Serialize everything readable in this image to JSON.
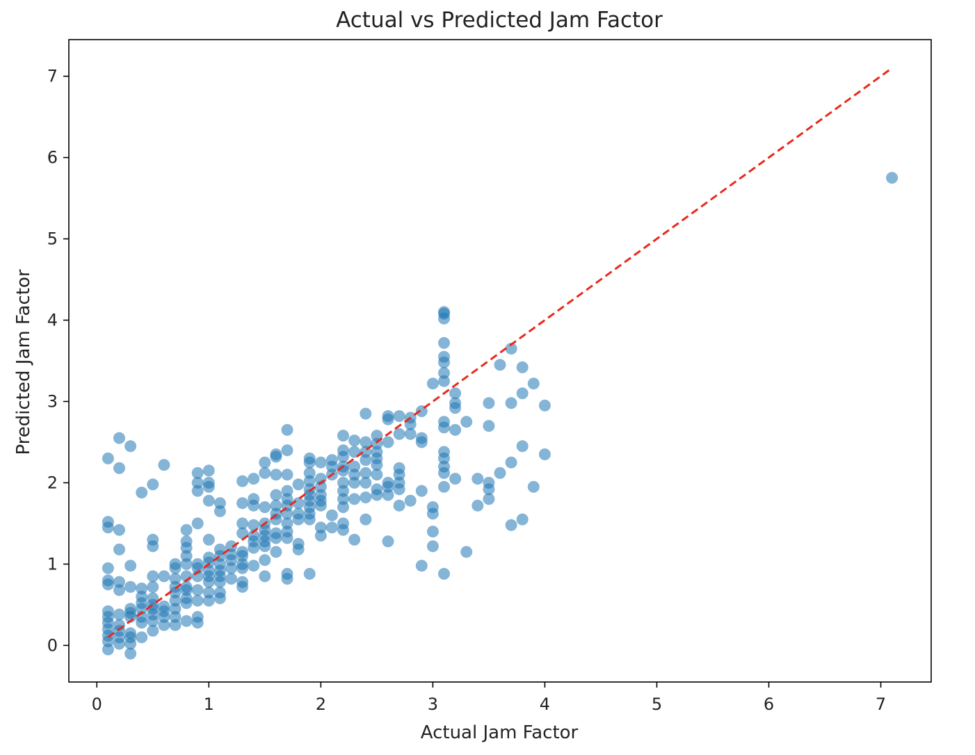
{
  "chart_data": {
    "type": "scatter",
    "title": "Actual vs Predicted Jam Factor",
    "xlabel": "Actual Jam Factor",
    "ylabel": "Predicted Jam Factor",
    "xlim": [
      -0.25,
      7.45
    ],
    "ylim": [
      -0.45,
      7.45
    ],
    "xticks": [
      0,
      1,
      2,
      3,
      4,
      5,
      6,
      7
    ],
    "yticks": [
      0,
      1,
      2,
      3,
      4,
      5,
      6,
      7
    ],
    "grid": false,
    "point_color": "#1f77b4",
    "point_alpha": 0.55,
    "reference_line": {
      "style": "dashed",
      "color": "#e8291c",
      "from": [
        0.1,
        0.1
      ],
      "to": [
        7.1,
        7.1
      ]
    },
    "points": [
      [
        0.1,
        -0.05
      ],
      [
        0.1,
        0.05
      ],
      [
        0.1,
        0.12
      ],
      [
        0.1,
        0.2
      ],
      [
        0.1,
        0.28
      ],
      [
        0.1,
        0.35
      ],
      [
        0.1,
        0.42
      ],
      [
        0.1,
        0.75
      ],
      [
        0.1,
        0.8
      ],
      [
        0.1,
        0.95
      ],
      [
        0.1,
        1.45
      ],
      [
        0.1,
        1.52
      ],
      [
        0.1,
        2.3
      ],
      [
        0.2,
        0.02
      ],
      [
        0.2,
        0.1
      ],
      [
        0.2,
        0.18
      ],
      [
        0.2,
        0.25
      ],
      [
        0.2,
        0.38
      ],
      [
        0.2,
        0.68
      ],
      [
        0.2,
        0.78
      ],
      [
        0.2,
        1.18
      ],
      [
        0.2,
        1.42
      ],
      [
        0.2,
        2.18
      ],
      [
        0.2,
        2.55
      ],
      [
        0.3,
        -0.1
      ],
      [
        0.3,
        0.02
      ],
      [
        0.3,
        0.1
      ],
      [
        0.3,
        0.15
      ],
      [
        0.3,
        0.35
      ],
      [
        0.3,
        0.4
      ],
      [
        0.3,
        0.45
      ],
      [
        0.3,
        0.72
      ],
      [
        0.3,
        0.98
      ],
      [
        0.3,
        2.45
      ],
      [
        0.4,
        0.1
      ],
      [
        0.4,
        0.28
      ],
      [
        0.4,
        0.35
      ],
      [
        0.4,
        0.45
      ],
      [
        0.4,
        0.52
      ],
      [
        0.4,
        0.6
      ],
      [
        0.4,
        0.7
      ],
      [
        0.4,
        1.88
      ],
      [
        0.5,
        0.18
      ],
      [
        0.5,
        0.3
      ],
      [
        0.5,
        0.38
      ],
      [
        0.5,
        0.45
      ],
      [
        0.5,
        0.5
      ],
      [
        0.5,
        0.58
      ],
      [
        0.5,
        0.72
      ],
      [
        0.5,
        0.85
      ],
      [
        0.5,
        1.22
      ],
      [
        0.5,
        1.3
      ],
      [
        0.5,
        1.98
      ],
      [
        0.6,
        0.25
      ],
      [
        0.6,
        0.35
      ],
      [
        0.6,
        0.42
      ],
      [
        0.6,
        0.48
      ],
      [
        0.6,
        0.85
      ],
      [
        0.6,
        2.22
      ],
      [
        0.7,
        0.25
      ],
      [
        0.7,
        0.35
      ],
      [
        0.7,
        0.45
      ],
      [
        0.7,
        0.55
      ],
      [
        0.7,
        0.65
      ],
      [
        0.7,
        0.72
      ],
      [
        0.7,
        0.82
      ],
      [
        0.7,
        0.95
      ],
      [
        0.7,
        1.0
      ],
      [
        0.8,
        0.3
      ],
      [
        0.8,
        0.52
      ],
      [
        0.8,
        0.58
      ],
      [
        0.8,
        0.68
      ],
      [
        0.8,
        0.72
      ],
      [
        0.8,
        0.85
      ],
      [
        0.8,
        1.0
      ],
      [
        0.8,
        1.1
      ],
      [
        0.8,
        1.2
      ],
      [
        0.8,
        1.28
      ],
      [
        0.8,
        1.42
      ],
      [
        0.9,
        0.28
      ],
      [
        0.9,
        0.35
      ],
      [
        0.9,
        0.55
      ],
      [
        0.9,
        0.68
      ],
      [
        0.9,
        0.85
      ],
      [
        0.9,
        0.95
      ],
      [
        0.9,
        1.0
      ],
      [
        0.9,
        1.5
      ],
      [
        0.9,
        1.9
      ],
      [
        0.9,
        2.0
      ],
      [
        0.9,
        2.12
      ],
      [
        1.0,
        0.55
      ],
      [
        1.0,
        0.65
      ],
      [
        1.0,
        0.78
      ],
      [
        1.0,
        0.85
      ],
      [
        1.0,
        0.92
      ],
      [
        1.0,
        1.02
      ],
      [
        1.0,
        1.08
      ],
      [
        1.0,
        1.3
      ],
      [
        1.0,
        1.78
      ],
      [
        1.0,
        1.95
      ],
      [
        1.0,
        2.0
      ],
      [
        1.0,
        2.15
      ],
      [
        1.1,
        0.58
      ],
      [
        1.1,
        0.65
      ],
      [
        1.1,
        0.78
      ],
      [
        1.1,
        0.85
      ],
      [
        1.1,
        0.92
      ],
      [
        1.1,
        1.0
      ],
      [
        1.1,
        1.1
      ],
      [
        1.1,
        1.18
      ],
      [
        1.1,
        1.65
      ],
      [
        1.1,
        1.75
      ],
      [
        1.2,
        0.82
      ],
      [
        1.2,
        0.95
      ],
      [
        1.2,
        1.05
      ],
      [
        1.2,
        1.12
      ],
      [
        1.2,
        1.22
      ],
      [
        1.3,
        0.72
      ],
      [
        1.3,
        0.78
      ],
      [
        1.3,
        0.95
      ],
      [
        1.3,
        1.0
      ],
      [
        1.3,
        1.1
      ],
      [
        1.3,
        1.15
      ],
      [
        1.3,
        1.38
      ],
      [
        1.3,
        1.5
      ],
      [
        1.3,
        1.75
      ],
      [
        1.3,
        2.02
      ],
      [
        1.4,
        0.98
      ],
      [
        1.4,
        1.2
      ],
      [
        1.4,
        1.28
      ],
      [
        1.4,
        1.35
      ],
      [
        1.4,
        1.48
      ],
      [
        1.4,
        1.72
      ],
      [
        1.4,
        1.8
      ],
      [
        1.4,
        2.05
      ],
      [
        1.5,
        0.85
      ],
      [
        1.5,
        1.05
      ],
      [
        1.5,
        1.22
      ],
      [
        1.5,
        1.28
      ],
      [
        1.5,
        1.35
      ],
      [
        1.5,
        1.42
      ],
      [
        1.5,
        1.5
      ],
      [
        1.5,
        1.7
      ],
      [
        1.5,
        2.12
      ],
      [
        1.5,
        2.25
      ],
      [
        1.6,
        1.15
      ],
      [
        1.6,
        1.32
      ],
      [
        1.6,
        1.38
      ],
      [
        1.6,
        1.55
      ],
      [
        1.6,
        1.62
      ],
      [
        1.6,
        1.72
      ],
      [
        1.6,
        1.85
      ],
      [
        1.6,
        2.1
      ],
      [
        1.6,
        2.32
      ],
      [
        1.6,
        2.35
      ],
      [
        1.7,
        0.82
      ],
      [
        1.7,
        0.88
      ],
      [
        1.7,
        1.32
      ],
      [
        1.7,
        1.4
      ],
      [
        1.7,
        1.5
      ],
      [
        1.7,
        1.62
      ],
      [
        1.7,
        1.72
      ],
      [
        1.7,
        1.8
      ],
      [
        1.7,
        1.9
      ],
      [
        1.7,
        2.1
      ],
      [
        1.7,
        2.4
      ],
      [
        1.7,
        2.65
      ],
      [
        1.8,
        1.18
      ],
      [
        1.8,
        1.25
      ],
      [
        1.8,
        1.55
      ],
      [
        1.8,
        1.62
      ],
      [
        1.8,
        1.75
      ],
      [
        1.8,
        1.98
      ],
      [
        1.9,
        0.88
      ],
      [
        1.9,
        1.55
      ],
      [
        1.9,
        1.62
      ],
      [
        1.9,
        1.7
      ],
      [
        1.9,
        1.78
      ],
      [
        1.9,
        1.85
      ],
      [
        1.9,
        1.92
      ],
      [
        1.9,
        2.02
      ],
      [
        1.9,
        2.12
      ],
      [
        1.9,
        2.25
      ],
      [
        1.9,
        2.3
      ],
      [
        2.0,
        1.35
      ],
      [
        2.0,
        1.45
      ],
      [
        2.0,
        1.72
      ],
      [
        2.0,
        1.78
      ],
      [
        2.0,
        1.85
      ],
      [
        2.0,
        1.95
      ],
      [
        2.0,
        2.05
      ],
      [
        2.0,
        2.25
      ],
      [
        2.1,
        1.45
      ],
      [
        2.1,
        1.6
      ],
      [
        2.1,
        2.1
      ],
      [
        2.1,
        2.2
      ],
      [
        2.1,
        2.28
      ],
      [
        2.2,
        1.42
      ],
      [
        2.2,
        1.5
      ],
      [
        2.2,
        1.7
      ],
      [
        2.2,
        1.8
      ],
      [
        2.2,
        1.9
      ],
      [
        2.2,
        2.0
      ],
      [
        2.2,
        2.15
      ],
      [
        2.2,
        2.2
      ],
      [
        2.2,
        2.32
      ],
      [
        2.2,
        2.4
      ],
      [
        2.2,
        2.58
      ],
      [
        2.3,
        1.3
      ],
      [
        2.3,
        1.8
      ],
      [
        2.3,
        2.0
      ],
      [
        2.3,
        2.1
      ],
      [
        2.3,
        2.2
      ],
      [
        2.3,
        2.38
      ],
      [
        2.3,
        2.52
      ],
      [
        2.4,
        1.55
      ],
      [
        2.4,
        1.82
      ],
      [
        2.4,
        2.0
      ],
      [
        2.4,
        2.12
      ],
      [
        2.4,
        2.28
      ],
      [
        2.4,
        2.38
      ],
      [
        2.4,
        2.5
      ],
      [
        2.4,
        2.85
      ],
      [
        2.5,
        1.85
      ],
      [
        2.5,
        1.92
      ],
      [
        2.5,
        2.1
      ],
      [
        2.5,
        2.22
      ],
      [
        2.5,
        2.3
      ],
      [
        2.5,
        2.38
      ],
      [
        2.5,
        2.48
      ],
      [
        2.5,
        2.58
      ],
      [
        2.6,
        1.28
      ],
      [
        2.6,
        1.85
      ],
      [
        2.6,
        1.95
      ],
      [
        2.6,
        2.0
      ],
      [
        2.6,
        2.5
      ],
      [
        2.6,
        2.78
      ],
      [
        2.6,
        2.82
      ],
      [
        2.7,
        1.72
      ],
      [
        2.7,
        1.92
      ],
      [
        2.7,
        2.0
      ],
      [
        2.7,
        2.1
      ],
      [
        2.7,
        2.18
      ],
      [
        2.7,
        2.6
      ],
      [
        2.7,
        2.82
      ],
      [
        2.8,
        1.78
      ],
      [
        2.8,
        2.6
      ],
      [
        2.8,
        2.72
      ],
      [
        2.8,
        2.8
      ],
      [
        2.9,
        0.98
      ],
      [
        2.9,
        1.9
      ],
      [
        2.9,
        2.5
      ],
      [
        2.9,
        2.55
      ],
      [
        2.9,
        2.88
      ],
      [
        3.0,
        1.22
      ],
      [
        3.0,
        1.4
      ],
      [
        3.0,
        1.62
      ],
      [
        3.0,
        1.7
      ],
      [
        3.0,
        3.22
      ],
      [
        3.1,
        0.88
      ],
      [
        3.1,
        1.95
      ],
      [
        3.1,
        2.12
      ],
      [
        3.1,
        2.2
      ],
      [
        3.1,
        2.3
      ],
      [
        3.1,
        2.38
      ],
      [
        3.1,
        2.68
      ],
      [
        3.1,
        2.75
      ],
      [
        3.1,
        3.25
      ],
      [
        3.1,
        3.35
      ],
      [
        3.1,
        3.48
      ],
      [
        3.1,
        3.55
      ],
      [
        3.1,
        3.72
      ],
      [
        3.1,
        4.02
      ],
      [
        3.1,
        4.08
      ],
      [
        3.1,
        4.1
      ],
      [
        3.2,
        2.05
      ],
      [
        3.2,
        2.65
      ],
      [
        3.2,
        2.92
      ],
      [
        3.2,
        2.98
      ],
      [
        3.2,
        3.1
      ],
      [
        3.3,
        1.15
      ],
      [
        3.3,
        2.75
      ],
      [
        3.4,
        1.72
      ],
      [
        3.4,
        2.05
      ],
      [
        3.5,
        1.8
      ],
      [
        3.5,
        1.92
      ],
      [
        3.5,
        2.0
      ],
      [
        3.5,
        2.7
      ],
      [
        3.5,
        2.98
      ],
      [
        3.6,
        2.12
      ],
      [
        3.6,
        3.45
      ],
      [
        3.7,
        1.48
      ],
      [
        3.7,
        2.25
      ],
      [
        3.7,
        2.98
      ],
      [
        3.7,
        3.65
      ],
      [
        3.8,
        1.55
      ],
      [
        3.8,
        2.45
      ],
      [
        3.8,
        3.1
      ],
      [
        3.8,
        3.42
      ],
      [
        3.9,
        1.95
      ],
      [
        3.9,
        3.22
      ],
      [
        4.0,
        2.35
      ],
      [
        4.0,
        2.95
      ],
      [
        7.1,
        5.75
      ]
    ]
  }
}
